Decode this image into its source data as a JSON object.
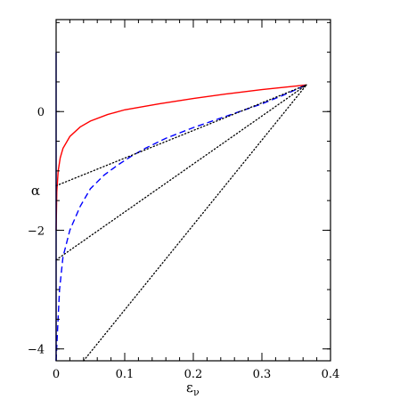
{
  "chart_data": {
    "type": "line",
    "title": "",
    "xlabel": "ε",
    "xlabel_sub": "ν",
    "ylabel": "α",
    "xlim": [
      0,
      0.4
    ],
    "ylim": [
      -4.2,
      1.55
    ],
    "grid": false,
    "x_ticks_major": [
      0,
      0.1,
      0.2,
      0.3,
      0.4
    ],
    "x_tick_labels": [
      "0",
      "0.1",
      "0.2",
      "0.3",
      "0.4"
    ],
    "x_ticks_minor_step": 0.02,
    "y_ticks_major": [
      -4,
      -2,
      0
    ],
    "y_tick_labels": [
      "−4",
      "−2",
      "0"
    ],
    "y_ticks_minor_step": 0.5,
    "series": [
      {
        "style": "solid",
        "color": "#ff0000",
        "points": [
          [
            0,
            -2.0
          ],
          [
            0.001,
            -1.35
          ],
          [
            0.003,
            -1.0
          ],
          [
            0.006,
            -0.78
          ],
          [
            0.01,
            -0.62
          ],
          [
            0.02,
            -0.42
          ],
          [
            0.035,
            -0.26
          ],
          [
            0.05,
            -0.16
          ],
          [
            0.075,
            -0.05
          ],
          [
            0.1,
            0.03
          ],
          [
            0.15,
            0.13
          ],
          [
            0.2,
            0.22
          ],
          [
            0.25,
            0.3
          ],
          [
            0.3,
            0.37
          ],
          [
            0.35,
            0.43
          ],
          [
            0.365,
            0.45
          ]
        ]
      },
      {
        "style": "dashed",
        "color": "#0000ff",
        "points": [
          [
            0,
            -4.2
          ],
          [
            0.002,
            -3.7
          ],
          [
            0.005,
            -3.0
          ],
          [
            0.01,
            -2.45
          ],
          [
            0.02,
            -2.0
          ],
          [
            0.035,
            -1.6
          ],
          [
            0.05,
            -1.3
          ],
          [
            0.07,
            -1.07
          ],
          [
            0.09,
            -0.9
          ],
          [
            0.11,
            -0.75
          ],
          [
            0.13,
            -0.62
          ],
          [
            0.16,
            -0.45
          ],
          [
            0.2,
            -0.27
          ],
          [
            0.25,
            -0.07
          ],
          [
            0.3,
            0.13
          ],
          [
            0.33,
            0.27
          ],
          [
            0.365,
            0.45
          ]
        ]
      },
      {
        "style": "dotted",
        "color": "#000000",
        "points": [
          [
            0,
            -1.25
          ],
          [
            0.365,
            0.45
          ]
        ]
      },
      {
        "style": "dotted",
        "color": "#000000",
        "points": [
          [
            0,
            -2.5
          ],
          [
            0.365,
            0.45
          ]
        ]
      },
      {
        "style": "dotted",
        "color": "#000000",
        "points": [
          [
            0.04,
            -4.2
          ],
          [
            0.365,
            0.45
          ]
        ]
      },
      {
        "style": "solid",
        "color": "#0000ff",
        "points": [
          [
            0,
            -4.2
          ],
          [
            0,
            1.0
          ]
        ]
      }
    ]
  }
}
